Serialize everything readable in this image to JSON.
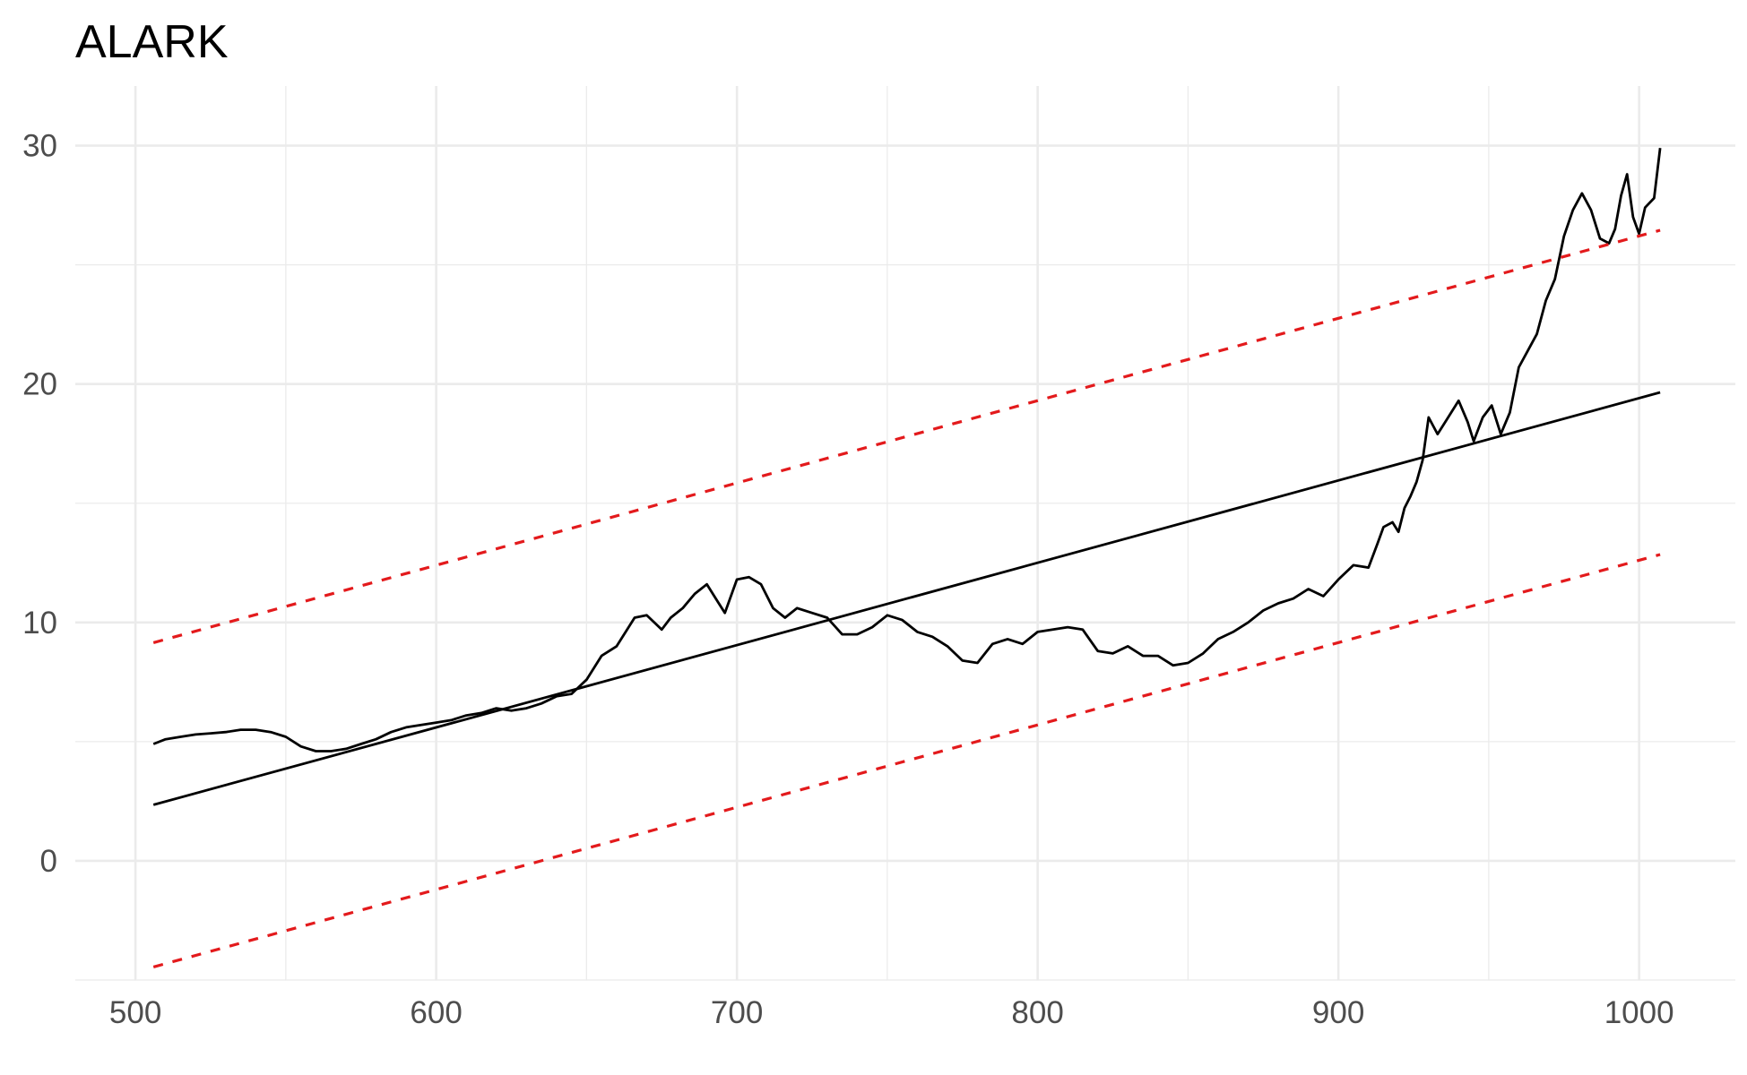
{
  "chart_data": {
    "type": "line",
    "title": "ALARK",
    "xlabel": "",
    "ylabel": "",
    "xlim": [
      480,
      1032
    ],
    "ylim": [
      -5,
      32.5
    ],
    "x_ticks": [
      500,
      600,
      700,
      800,
      900,
      1000
    ],
    "x_tick_labels": [
      "500",
      "600",
      "700",
      "800",
      "900",
      "1000"
    ],
    "y_ticks": [
      0,
      10,
      20,
      30
    ],
    "y_tick_labels": [
      "0",
      "10",
      "20",
      "30"
    ],
    "grid": true,
    "legend": "none",
    "series": [
      {
        "style": "solid",
        "color": "#000000",
        "x": [
          506,
          510,
          515,
          520,
          525,
          530,
          535,
          540,
          545,
          550,
          555,
          560,
          565,
          570,
          575,
          580,
          585,
          590,
          595,
          600,
          605,
          610,
          615,
          620,
          625,
          630,
          635,
          640,
          645,
          650,
          655,
          660,
          663,
          666,
          670,
          675,
          678,
          682,
          686,
          690,
          693,
          696,
          700,
          704,
          708,
          712,
          716,
          720,
          725,
          730,
          735,
          740,
          745,
          750,
          755,
          760,
          765,
          770,
          775,
          780,
          785,
          790,
          795,
          800,
          805,
          810,
          815,
          820,
          825,
          830,
          835,
          840,
          845,
          850,
          855,
          860,
          865,
          870,
          875,
          880,
          885,
          890,
          895,
          900,
          905,
          910,
          913,
          915,
          918,
          920,
          922,
          924,
          926,
          928,
          930,
          933,
          936,
          940,
          943,
          945,
          948,
          951,
          954,
          957,
          960,
          963,
          966,
          969,
          972,
          975,
          978,
          981,
          984,
          987,
          990,
          992,
          994,
          996,
          998,
          1000,
          1002,
          1005,
          1007
        ],
        "y": [
          4.9,
          5.1,
          5.2,
          5.3,
          5.35,
          5.4,
          5.5,
          5.5,
          5.4,
          5.2,
          4.8,
          4.6,
          4.6,
          4.7,
          4.9,
          5.1,
          5.4,
          5.6,
          5.7,
          5.8,
          5.9,
          6.1,
          6.2,
          6.4,
          6.3,
          6.4,
          6.6,
          6.9,
          7.0,
          7.6,
          8.6,
          9.0,
          9.6,
          10.2,
          10.3,
          9.7,
          10.2,
          10.6,
          11.2,
          11.6,
          11.0,
          10.4,
          11.8,
          11.9,
          11.6,
          10.6,
          10.2,
          10.6,
          10.4,
          10.2,
          9.5,
          9.5,
          9.8,
          10.3,
          10.1,
          9.6,
          9.4,
          9.0,
          8.4,
          8.3,
          9.1,
          9.3,
          9.1,
          9.6,
          9.7,
          9.8,
          9.7,
          8.8,
          8.7,
          9.0,
          8.6,
          8.6,
          8.2,
          8.3,
          8.7,
          9.3,
          9.6,
          10.0,
          10.5,
          10.8,
          11.0,
          11.4,
          11.1,
          11.8,
          12.4,
          12.3,
          13.3,
          14.0,
          14.2,
          13.8,
          14.8,
          15.3,
          15.9,
          16.8,
          18.6,
          17.9,
          18.5,
          19.3,
          18.4,
          17.6,
          18.6,
          19.1,
          17.9,
          18.8,
          20.7,
          21.4,
          22.1,
          23.5,
          24.4,
          26.2,
          27.3,
          28.0,
          27.3,
          26.1,
          25.9,
          26.5,
          27.9,
          28.8,
          27.0,
          26.3,
          27.4,
          27.8,
          29.9
        ]
      },
      {
        "style": "solid",
        "color": "#000000",
        "x": [
          506,
          1007
        ],
        "y": [
          2.35,
          19.65
        ]
      },
      {
        "style": "dashed",
        "color": "#e31a1c",
        "x": [
          506,
          1007
        ],
        "y": [
          9.15,
          26.45
        ]
      },
      {
        "style": "dashed",
        "color": "#e31a1c",
        "x": [
          506,
          1007
        ],
        "y": [
          -4.45,
          12.85
        ]
      }
    ]
  }
}
